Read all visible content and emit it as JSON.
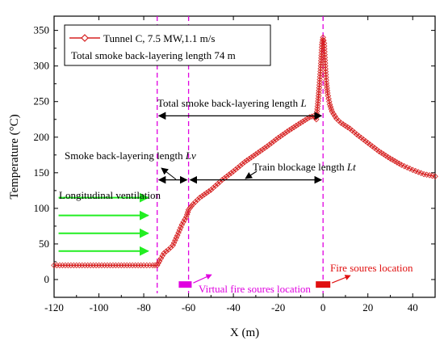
{
  "chart_data": {
    "type": "line",
    "xlabel": "X (m)",
    "ylabel": "Temperature (°C)",
    "xlim": [
      -120,
      50
    ],
    "ylim": [
      -25,
      370
    ],
    "xticks": [
      -120,
      -100,
      -80,
      -60,
      -40,
      -20,
      0,
      20,
      40
    ],
    "xtick_labels": [
      "-120",
      "-100",
      "-80",
      "-60",
      "-40",
      "-20",
      "0",
      "20",
      "40"
    ],
    "yticks": [
      0,
      50,
      100,
      150,
      200,
      250,
      300,
      350
    ],
    "ytick_labels": [
      "0",
      "50",
      "100",
      "150",
      "200",
      "250",
      "300",
      "350"
    ],
    "grid": false,
    "legend_placement": "top-left",
    "series": [
      {
        "name": "Tunnel C, 7.5 MW,1.1 m/s",
        "color": "#d62020",
        "marker": "open-diamond",
        "x": [
          -120,
          -110,
          -100,
          -90,
          -80,
          -76,
          -74,
          -73,
          -71,
          -69,
          -67,
          -65,
          -63,
          -61,
          -60,
          -58,
          -55,
          -50,
          -45,
          -40,
          -35,
          -30,
          -25,
          -20,
          -15,
          -10,
          -6,
          -4,
          -3,
          -2,
          -1,
          -0.5,
          0,
          0.5,
          1,
          1.5,
          2,
          3,
          4,
          6,
          8,
          10,
          12,
          15,
          20,
          25,
          30,
          35,
          40,
          45,
          50
        ],
        "y": [
          20,
          20,
          20,
          20,
          20,
          20,
          20,
          26,
          37,
          42,
          48,
          62,
          77,
          88,
          98,
          106,
          115,
          126,
          140,
          152,
          165,
          176,
          187,
          199,
          210,
          220,
          228,
          230,
          225,
          258,
          300,
          330,
          340,
          332,
          300,
          276,
          262,
          246,
          236,
          226,
          220,
          216,
          212,
          204,
          192,
          180,
          170,
          161,
          154,
          148,
          145
        ]
      }
    ],
    "legend_extra": "Total smoke back-layering length 74 m",
    "vlines": [
      {
        "x": -74,
        "color": "#e000e0"
      },
      {
        "x": -60,
        "color": "#e000e0"
      },
      {
        "x": 0,
        "color": "#e000e0"
      }
    ],
    "dimension_lines": [
      {
        "label": "Total smoke back-layering length ",
        "symbol": "L",
        "x1": -74,
        "x2": 0,
        "y": 230
      },
      {
        "label": "Smoke back-layering length ",
        "symbol": "Lv",
        "x1": -74,
        "x2": -60,
        "y": 140
      },
      {
        "label": "Train blockage length ",
        "symbol": "Lt",
        "x1": -60,
        "x2": 0,
        "y": 140
      }
    ],
    "ventilation": {
      "label": "Longitudinal ventilation",
      "color": "#22ee22",
      "arrow_y": [
        115,
        90,
        65,
        40
      ],
      "x_start": -118,
      "x_end": -78
    },
    "markers": [
      {
        "label": "Virtual fire soures location",
        "x": -61.5,
        "color": "#e000e0"
      },
      {
        "label": "Fire soures location",
        "x": 0,
        "color": "#e01010"
      }
    ]
  }
}
